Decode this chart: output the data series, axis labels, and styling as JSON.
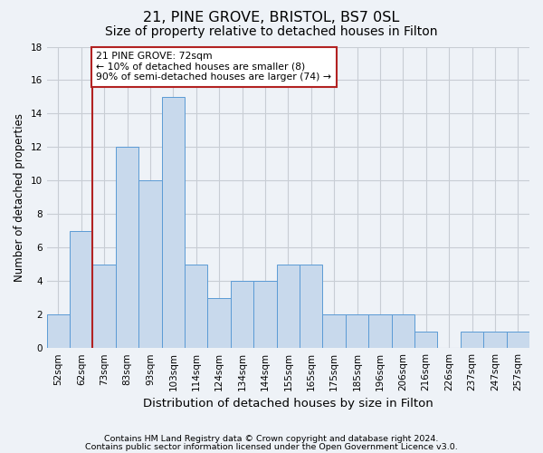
{
  "title": "21, PINE GROVE, BRISTOL, BS7 0SL",
  "subtitle": "Size of property relative to detached houses in Filton",
  "xlabel": "Distribution of detached houses by size in Filton",
  "ylabel": "Number of detached properties",
  "footnote1": "Contains HM Land Registry data © Crown copyright and database right 2024.",
  "footnote2": "Contains public sector information licensed under the Open Government Licence v3.0.",
  "bin_labels": [
    "52sqm",
    "62sqm",
    "73sqm",
    "83sqm",
    "93sqm",
    "103sqm",
    "114sqm",
    "124sqm",
    "134sqm",
    "144sqm",
    "155sqm",
    "165sqm",
    "175sqm",
    "185sqm",
    "196sqm",
    "206sqm",
    "216sqm",
    "226sqm",
    "237sqm",
    "247sqm",
    "257sqm"
  ],
  "bar_values": [
    2,
    7,
    5,
    12,
    10,
    15,
    5,
    3,
    4,
    4,
    5,
    5,
    2,
    2,
    2,
    2,
    1,
    0,
    1,
    1,
    1
  ],
  "bar_color": "#c8d9ec",
  "bar_edge_color": "#5b9bd5",
  "grid_color": "#c8cdd4",
  "vline_x_index": 2,
  "vline_color": "#b22222",
  "annotation_text": "21 PINE GROVE: 72sqm\n← 10% of detached houses are smaller (8)\n90% of semi-detached houses are larger (74) →",
  "annotation_box_color": "white",
  "annotation_box_edge": "#b22222",
  "ylim": [
    0,
    18
  ],
  "yticks": [
    0,
    2,
    4,
    6,
    8,
    10,
    12,
    14,
    16,
    18
  ],
  "background_color": "#eef2f7",
  "title_fontsize": 11.5,
  "subtitle_fontsize": 10,
  "xlabel_fontsize": 9.5,
  "ylabel_fontsize": 8.5,
  "tick_fontsize": 7.5,
  "footnote_fontsize": 6.8
}
